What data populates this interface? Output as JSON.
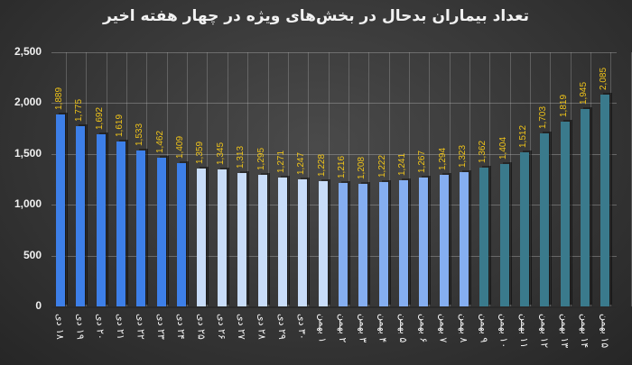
{
  "title": "تعداد بیماران بدحال در بخش‌های ویژه در چهار هفته اخیر",
  "colors": {
    "week1": "#3d7fe8",
    "week2": "#c8dcf8",
    "week3": "#85aef0",
    "week4": "#3a7a8c",
    "label": "#f0c419",
    "axis_text": "#f0f0f0"
  },
  "y_ticks": [
    "2,500",
    "2,000",
    "1,500",
    "1,000",
    "500",
    "0"
  ],
  "chart_data": {
    "type": "bar",
    "title": "تعداد بیماران بدحال در بخش‌های ویژه در چهار هفته اخیر",
    "xlabel": "",
    "ylabel": "",
    "ylim": [
      0,
      2500
    ],
    "y_ticks": [
      0,
      500,
      1000,
      1500,
      2000,
      2500
    ],
    "grid": true,
    "legend": "none",
    "categories": [
      "۱۸ دی",
      "۱۹ دی",
      "۲۰ دی",
      "۲۱ دی",
      "۲۲ دی",
      "۲۳ دی",
      "۲۴ دی",
      "۲۵ دی",
      "۲۶ دی",
      "۲۷ دی",
      "۲۸ دی",
      "۲۹ دی",
      "۳۰ دی",
      "۱ بهمن",
      "۲ بهمن",
      "۳ بهمن",
      "۴ بهمن",
      "۵ بهمن",
      "۶ بهمن",
      "۷ بهمن",
      "۸ بهمن",
      "۹ بهمن",
      "۱۰ بهمن",
      "۱۱ بهمن",
      "۱۲ بهمن",
      "۱۳ بهمن",
      "۱۴ بهمن",
      "۱۵ بهمن"
    ],
    "values": [
      1889,
      1775,
      1692,
      1619,
      1533,
      1462,
      1409,
      1359,
      1345,
      1313,
      1295,
      1271,
      1247,
      1228,
      1216,
      1208,
      1222,
      1241,
      1267,
      1294,
      1323,
      1362,
      1404,
      1512,
      1703,
      1819,
      1945,
      2085
    ],
    "value_labels": [
      "1,889",
      "1,775",
      "1,692",
      "1,619",
      "1,533",
      "1,462",
      "1,409",
      "1,359",
      "1,345",
      "1,313",
      "1,295",
      "1,271",
      "1,247",
      "1,228",
      "1,216",
      "1,208",
      "1,222",
      "1,241",
      "1,267",
      "1,294",
      "1,323",
      "1,362",
      "1,404",
      "1,512",
      "1,703",
      "1,819",
      "1,945",
      "2,085"
    ],
    "groups": [
      {
        "name": "week1",
        "range": [
          0,
          6
        ],
        "color": "#3d7fe8"
      },
      {
        "name": "week2",
        "range": [
          7,
          13
        ],
        "color": "#c8dcf8"
      },
      {
        "name": "week3",
        "range": [
          14,
          20
        ],
        "color": "#85aef0"
      },
      {
        "name": "week4",
        "range": [
          21,
          27
        ],
        "color": "#3a7a8c"
      }
    ]
  }
}
